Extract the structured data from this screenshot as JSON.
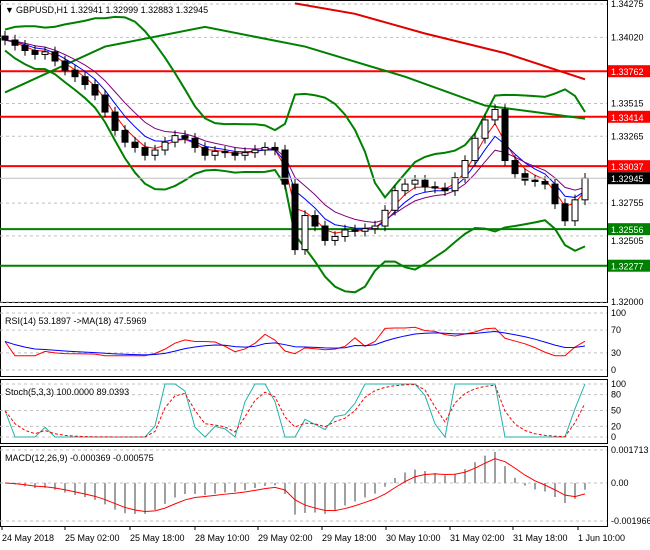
{
  "header": {
    "symbol_label": "GBPUSD,H1",
    "ohlc": "1.32941 1.32999 1.32883 1.32945"
  },
  "chart_data": [
    {
      "type": "candlestick",
      "title": "GBPUSD,H1 1.32941 1.32999 1.32883 1.32945",
      "ylim": [
        1.32,
        1.34275
      ],
      "yticks": [
        "1.34275",
        "1.34020",
        "1.33515",
        "1.33265",
        "1.32755",
        "1.32505",
        "1.32000"
      ],
      "xticks": [
        "24 May 2018",
        "25 May 02:00",
        "25 May 18:00",
        "28 May 10:00",
        "29 May 02:00",
        "29 May 18:00",
        "30 May 10:00",
        "31 May 02:00",
        "31 May 18:00",
        "1 Jun 10:00"
      ],
      "close": [
        1.34,
        1.3396,
        1.3392,
        1.3389,
        1.3391,
        1.3384,
        1.3377,
        1.3372,
        1.3366,
        1.3358,
        1.3345,
        1.3331,
        1.3322,
        1.3318,
        1.3312,
        1.3316,
        1.3322,
        1.3327,
        1.3325,
        1.3318,
        1.3312,
        1.3315,
        1.3314,
        1.3312,
        1.3314,
        1.3316,
        1.3318,
        1.3316,
        1.329,
        1.324,
        1.3266,
        1.3258,
        1.3247,
        1.325,
        1.3255,
        1.3254,
        1.3256,
        1.3258,
        1.327,
        1.3285,
        1.329,
        1.3293,
        1.3288,
        1.3287,
        1.3285,
        1.3295,
        1.3308,
        1.3325,
        1.3339,
        1.3347,
        1.3308,
        1.3298,
        1.3293,
        1.3292,
        1.329,
        1.3275,
        1.3262,
        1.3278,
        1.32945
      ],
      "slow_ma_red": [
        [
          29,
          1.3428
        ],
        [
          35,
          1.342
        ],
        [
          42,
          1.3405
        ],
        [
          50,
          1.339
        ],
        [
          58,
          1.337
        ]
      ],
      "slow_ma_green": [
        [
          0,
          1.336
        ],
        [
          10,
          1.3395
        ],
        [
          20,
          1.341
        ],
        [
          30,
          1.3395
        ],
        [
          40,
          1.3372
        ],
        [
          48,
          1.335
        ],
        [
          58,
          1.334
        ]
      ],
      "levels": [
        {
          "value": 1.33762,
          "label": "1.33762",
          "color": "#ff0000"
        },
        {
          "value": 1.33414,
          "label": "1.33414",
          "color": "#ff0000"
        },
        {
          "value": 1.33037,
          "label": "1.33037",
          "color": "#ff0000"
        },
        {
          "value": 1.32556,
          "label": "1.32556",
          "color": "#008000"
        },
        {
          "value": 1.32277,
          "label": "1.32277",
          "color": "#008000"
        }
      ],
      "current_price": {
        "value": 1.32945,
        "label": "1.32945",
        "color": "#000000"
      }
    },
    {
      "type": "line",
      "title": "RSI(14) 53.1897  ->MA(18) 47.5969",
      "ylim": [
        0,
        100
      ],
      "yticks": [
        "100",
        "70",
        "30",
        "0"
      ]
    },
    {
      "type": "line",
      "title": "Stoch(5,3,3) 100.0000 89.0393",
      "ylim": [
        0,
        100
      ],
      "yticks": [
        "100",
        "80",
        "50",
        "20",
        "0"
      ]
    },
    {
      "type": "bar",
      "title": "MACD(12,26,9) -0.000369 -0.000575",
      "ylim": [
        -0.001966,
        0.001713
      ],
      "yticks": [
        "0.001713",
        "0.00",
        "-0.001966"
      ]
    }
  ]
}
